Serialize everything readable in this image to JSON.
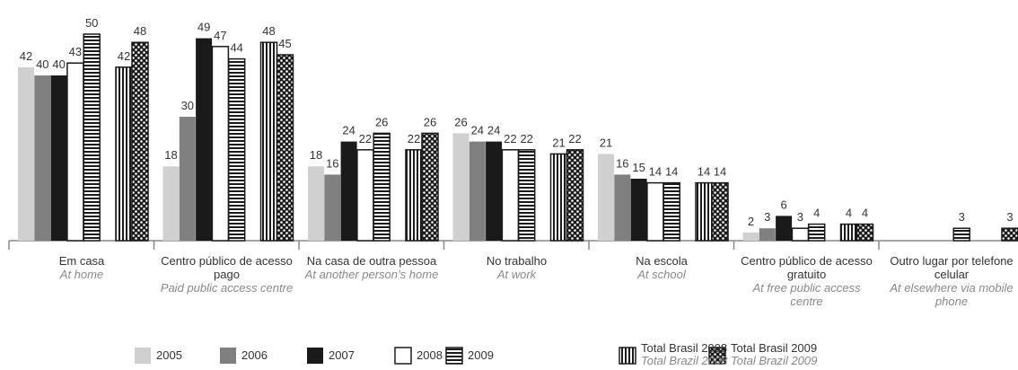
{
  "chart_data": {
    "type": "bar",
    "categories": [
      "Em casa",
      "Centro público de acesso pago",
      "Na casa de outra pessoa",
      "No trabalho",
      "Na escola",
      "Centro público de acesso gratuito",
      "Outro lugar por telefone celular"
    ],
    "subcategories": [
      "At home",
      "Paid public access centre",
      "At another person’s home",
      "At work",
      "At school",
      "At free public access centre",
      "At elsewhere via mobile phone"
    ],
    "series": [
      {
        "name": "2005",
        "color": "#d0d0d0",
        "values": [
          42,
          18,
          18,
          26,
          21,
          2,
          null
        ]
      },
      {
        "name": "2006",
        "color": "#808080",
        "values": [
          40,
          30,
          16,
          24,
          16,
          3,
          null
        ]
      },
      {
        "name": "2007",
        "color": "#1a1a1a",
        "values": [
          40,
          49,
          24,
          24,
          15,
          6,
          null
        ]
      },
      {
        "name": "2008",
        "color": "#ffffff",
        "values": [
          43,
          47,
          22,
          22,
          14,
          3,
          null
        ]
      },
      {
        "name": "2009",
        "color": "#1a1a1a",
        "pattern": "horizontal-stripes",
        "values": [
          50,
          44,
          26,
          22,
          14,
          4,
          3
        ]
      },
      {
        "name": "Total Brasil 2008",
        "subname": "Total Brazil 2008",
        "color": "#1a1a1a",
        "pattern": "vertical-stripes",
        "values": [
          42,
          48,
          22,
          21,
          14,
          4,
          null
        ]
      },
      {
        "name": "Total Brasil 2009",
        "subname": "Total Brazil 2009",
        "color": "#1a1a1a",
        "pattern": "dots",
        "values": [
          48,
          45,
          26,
          22,
          14,
          4,
          3
        ]
      }
    ]
  }
}
